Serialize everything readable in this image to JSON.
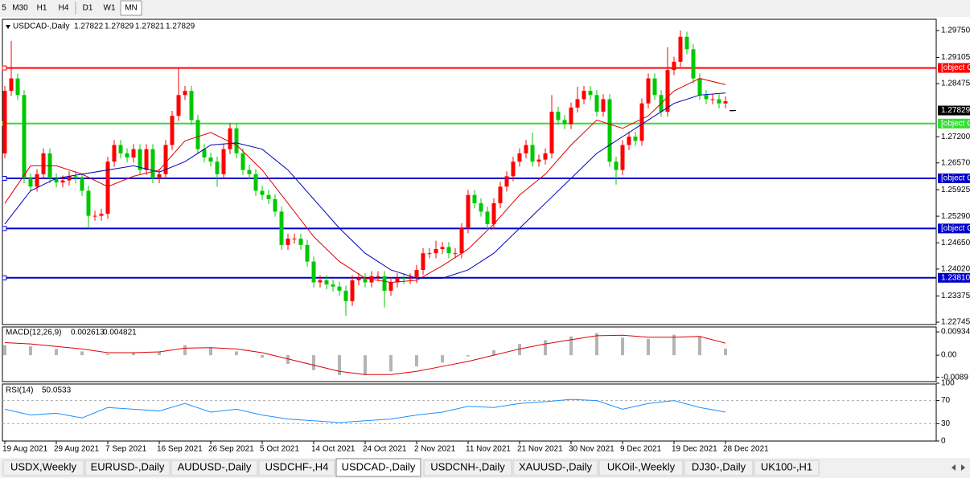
{
  "toolbar": {
    "timeframes": [
      "5",
      "M30",
      "H1",
      "H4",
      "D1",
      "W1",
      "MN"
    ],
    "active": 6
  },
  "chart_data": {
    "type": "candlestick",
    "title": "USDCAD-,Daily",
    "ylim": [
      1.22687,
      1.3002
    ],
    "yticks": [
      {
        "value": 1.2975,
        "label": "1.29750"
      },
      1.29105,
      1.28475,
      {
        "value": 1.272,
        "label": "1.27200"
      },
      {
        "value": 1.2657,
        "label": "1.26570"
      },
      1.25925,
      {
        "value": 1.2529,
        "label": "1.25290"
      },
      {
        "value": 1.2465,
        "label": "1.24650"
      },
      {
        "value": 1.2402,
        "label": "1.24020"
      },
      1.23375,
      1.22745
    ],
    "colors": {
      "up": "#ff0000",
      "down": "#00c800"
    },
    "open": [
      1.268,
      1.283,
      1.286,
      1.282,
      1.262,
      1.26,
      1.263,
      1.268,
      1.262,
      1.261,
      1.2615,
      1.2625,
      1.262,
      1.259,
      1.253,
      1.253,
      1.2535,
      1.266,
      1.27,
      1.268,
      1.267,
      1.269,
      1.264,
      1.269,
      1.262,
      1.263,
      1.27,
      1.277,
      1.282,
      1.283,
      1.276,
      1.269,
      1.267,
      1.266,
      1.263,
      1.269,
      1.274,
      1.268,
      1.264,
      1.263,
      1.259,
      1.258,
      1.257,
      1.254,
      1.246,
      1.2475,
      1.2475,
      1.246,
      1.242,
      1.237,
      1.2375,
      1.2365,
      1.236,
      1.235,
      1.2325,
      1.2375,
      1.238,
      1.237,
      1.2385,
      1.2385,
      1.235,
      1.237,
      1.238,
      1.2378,
      1.238,
      1.24,
      1.244,
      1.244,
      1.245,
      1.2455,
      1.244,
      1.244,
      1.25,
      1.258,
      1.256,
      1.254,
      1.251,
      1.256,
      1.26,
      1.2625,
      1.266,
      1.268,
      1.27,
      1.266,
      1.2665,
      1.268,
      1.278,
      1.276,
      1.275,
      1.279,
      1.281,
      1.283,
      1.282,
      1.278,
      1.281,
      1.266,
      1.264,
      1.27,
      1.272,
      1.271,
      1.28,
      1.286,
      1.282,
      1.278,
      1.288,
      1.29,
      1.296,
      1.293,
      1.286,
      1.282,
      1.281,
      1.281,
      1.28,
      1.27822
    ],
    "high": [
      1.2842,
      1.295,
      1.2872,
      1.2832,
      1.2632,
      1.2642,
      1.2692,
      1.2692,
      1.2632,
      1.2627,
      1.2637,
      1.2637,
      1.2632,
      1.2602,
      1.2542,
      1.2547,
      1.2672,
      1.2712,
      1.2712,
      1.2692,
      1.2702,
      1.2702,
      1.2702,
      1.2702,
      1.2642,
      1.2712,
      1.2782,
      1.2885,
      1.2842,
      1.2842,
      1.2772,
      1.2702,
      1.2682,
      1.2672,
      1.2702,
      1.2752,
      1.2752,
      1.2692,
      1.2652,
      1.2642,
      1.2602,
      1.2592,
      1.2582,
      1.2552,
      1.2487,
      1.2487,
      1.2487,
      1.2472,
      1.2432,
      1.2387,
      1.2387,
      1.2377,
      1.2372,
      1.2362,
      1.2387,
      1.2392,
      1.2392,
      1.2397,
      1.2397,
      1.2397,
      1.2382,
      1.2392,
      1.2392,
      1.2392,
      1.2412,
      1.2452,
      1.2452,
      1.247,
      1.2467,
      1.2467,
      1.2452,
      1.2512,
      1.2592,
      1.2592,
      1.2572,
      1.2552,
      1.2572,
      1.2612,
      1.2637,
      1.2672,
      1.2692,
      1.2712,
      1.273,
      1.2677,
      1.2692,
      1.282,
      1.2792,
      1.2772,
      1.2802,
      1.284,
      1.2842,
      1.2842,
      1.2832,
      1.2822,
      1.2822,
      1.2672,
      1.2712,
      1.2732,
      1.2732,
      1.2812,
      1.2872,
      1.2872,
      1.2832,
      1.2935,
      1.2912,
      1.2975,
      1.2972,
      1.2942,
      1.2872,
      1.2832,
      1.2822,
      1.2822,
      1.2817,
      1.27829
    ],
    "low": [
      1.2668,
      1.2818,
      1.2808,
      1.2608,
      1.2588,
      1.2588,
      1.2618,
      1.2608,
      1.2598,
      1.2598,
      1.2603,
      1.2608,
      1.2578,
      1.25,
      1.2518,
      1.2518,
      1.2523,
      1.2648,
      1.2668,
      1.2658,
      1.2658,
      1.2628,
      1.2628,
      1.2608,
      1.2608,
      1.2618,
      1.2688,
      1.2758,
      1.2808,
      1.2748,
      1.2678,
      1.2658,
      1.2648,
      1.26,
      1.2618,
      1.2678,
      1.2668,
      1.2628,
      1.2618,
      1.2578,
      1.2568,
      1.2558,
      1.2528,
      1.2448,
      1.2448,
      1.2463,
      1.2448,
      1.2408,
      1.2358,
      1.2358,
      1.2353,
      1.2348,
      1.2338,
      1.229,
      1.2313,
      1.2363,
      1.2358,
      1.2358,
      1.2373,
      1.231,
      1.2338,
      1.2358,
      1.2366,
      1.2366,
      1.2368,
      1.2388,
      1.2428,
      1.2428,
      1.2438,
      1.2428,
      1.2428,
      1.2428,
      1.2488,
      1.2548,
      1.2528,
      1.2498,
      1.2498,
      1.2548,
      1.2588,
      1.2613,
      1.2648,
      1.2668,
      1.2648,
      1.2648,
      1.2653,
      1.2668,
      1.2748,
      1.2738,
      1.2738,
      1.2778,
      1.2798,
      1.2808,
      1.2768,
      1.2768,
      1.2648,
      1.2605,
      1.2628,
      1.2688,
      1.2698,
      1.2698,
      1.2788,
      1.2808,
      1.2768,
      1.2768,
      1.2868,
      1.2888,
      1.2918,
      1.2848,
      1.2808,
      1.2798,
      1.2798,
      1.2788,
      1.2788,
      1.27821
    ],
    "close": [
      1.283,
      1.286,
      1.282,
      1.262,
      1.26,
      1.263,
      1.268,
      1.262,
      1.261,
      1.2615,
      1.2625,
      1.262,
      1.259,
      1.253,
      1.253,
      1.2535,
      1.266,
      1.27,
      1.268,
      1.267,
      1.269,
      1.264,
      1.269,
      1.262,
      1.263,
      1.27,
      1.277,
      1.282,
      1.283,
      1.276,
      1.269,
      1.267,
      1.266,
      1.263,
      1.269,
      1.274,
      1.268,
      1.264,
      1.263,
      1.259,
      1.258,
      1.257,
      1.254,
      1.246,
      1.2475,
      1.2475,
      1.246,
      1.242,
      1.237,
      1.2375,
      1.2365,
      1.236,
      1.235,
      1.2325,
      1.2375,
      1.238,
      1.237,
      1.2385,
      1.2385,
      1.235,
      1.237,
      1.238,
      1.2378,
      1.238,
      1.24,
      1.244,
      1.244,
      1.245,
      1.2455,
      1.244,
      1.244,
      1.25,
      1.258,
      1.256,
      1.254,
      1.251,
      1.256,
      1.26,
      1.2625,
      1.266,
      1.268,
      1.27,
      1.266,
      1.2665,
      1.268,
      1.278,
      1.276,
      1.275,
      1.279,
      1.281,
      1.283,
      1.282,
      1.278,
      1.281,
      1.266,
      1.264,
      1.27,
      1.272,
      1.271,
      1.28,
      1.286,
      1.282,
      1.278,
      1.288,
      1.29,
      1.296,
      1.293,
      1.286,
      1.282,
      1.281,
      1.281,
      1.28,
      1.2805,
      1.27829
    ],
    "x_labels": [
      "19 Aug 2021",
      "29 Aug 2021",
      "7 Sep 2021",
      "16 Sep 2021",
      "26 Sep 2021",
      "5 Oct 2021",
      "14 Oct 2021",
      "24 Oct 2021",
      "2 Nov 2021",
      "11 Nov 2021",
      "21 Nov 2021",
      "30 Nov 2021",
      "9 Dec 2021",
      "19 Dec 2021",
      "28 Dec 2021"
    ],
    "levels": [
      {
        "value": 1.28851,
        "color": "#ff0000"
      },
      {
        "value": 1.27515,
        "color": "#33dd33"
      },
      {
        "value": 1.26199,
        "color": "#0000cc"
      },
      {
        "value": 1.24995,
        "color": "#0000cc"
      },
      {
        "value": 1.2381,
        "label": "1.23810",
        "color": "#0000cc"
      }
    ],
    "indicator_x": [
      0,
      4,
      8,
      12,
      16,
      20,
      24,
      28,
      32,
      36,
      40,
      44,
      48,
      52,
      56,
      60,
      64,
      68,
      72,
      76,
      80,
      84,
      88,
      92,
      96,
      100,
      104,
      108,
      112
    ],
    "ma": [
      {
        "color": "#dd0000",
        "values": [
          1.256,
          1.265,
          1.265,
          1.263,
          1.26,
          1.2625,
          1.264,
          1.271,
          1.273,
          1.27,
          1.264,
          1.256,
          1.248,
          1.242,
          1.238,
          1.237,
          1.2375,
          1.241,
          1.245,
          1.251,
          1.258,
          1.263,
          1.27,
          1.276,
          1.274,
          1.277,
          1.283,
          1.286,
          1.2845
        ]
      },
      {
        "color": "#0000bb",
        "values": [
          1.251,
          1.259,
          1.262,
          1.263,
          1.264,
          1.265,
          1.2635,
          1.266,
          1.27,
          1.2705,
          1.269,
          1.264,
          1.257,
          1.25,
          1.244,
          1.24,
          1.238,
          1.238,
          1.24,
          1.244,
          1.25,
          1.256,
          1.262,
          1.268,
          1.272,
          1.276,
          1.28,
          1.282,
          1.2825
        ]
      }
    ]
  },
  "macd": {
    "title": "MACD(12,26,9)",
    "ylim": [
      -0.0106,
      0.0113
    ],
    "yticks": [
      0.009345,
      {
        "value": 0,
        "label": "0.00"
      },
      -0.0089
    ],
    "histogram_color": "#b4b4b4",
    "signal_color": "#dd0000",
    "histogram": [
      0.004,
      0.0035,
      0.0025,
      0.0015,
      0.0005,
      0.0008,
      0.0015,
      0.004,
      0.003,
      0.0015,
      -0.001,
      -0.0035,
      -0.006,
      -0.008,
      -0.008,
      -0.0065,
      -0.0045,
      -0.003,
      -0.0005,
      0.002,
      0.0045,
      0.006,
      0.0075,
      0.0088,
      0.007,
      0.0065,
      0.0082,
      0.0075,
      0.002613
    ],
    "signal": [
      0.005,
      0.0045,
      0.0035,
      0.0025,
      0.001,
      0.001,
      0.0013,
      0.0028,
      0.003,
      0.0025,
      0.001,
      -0.0015,
      -0.004,
      -0.0065,
      -0.0078,
      -0.0078,
      -0.0065,
      -0.0045,
      -0.0025,
      0.0,
      0.0025,
      0.0045,
      0.0062,
      0.0078,
      0.008,
      0.0072,
      0.0072,
      0.0075,
      0.004821
    ]
  },
  "rsi": {
    "title": "RSI(14)",
    "ylim": [
      0,
      100
    ],
    "yticks": [
      100,
      70,
      30,
      0
    ],
    "levels": [
      70,
      30
    ],
    "color": "#1e90ff",
    "values": [
      55,
      45,
      48,
      40,
      58,
      55,
      52,
      65,
      50,
      55,
      45,
      38,
      35,
      32,
      35,
      38,
      45,
      50,
      60,
      58,
      65,
      68,
      72,
      70,
      55,
      65,
      70,
      58,
      50.0533
    ]
  },
  "tabs": [
    "USDX,Weekly",
    "EURUSD-,Daily",
    "AUDUSD-,Daily",
    "USDCHF-,H4",
    "USDCAD-,Daily",
    "USDCNH-,Daily",
    "XAUUSD-,Daily",
    "UKOil-,Weekly",
    "DJ30-,Daily",
    "UK100-,H1"
  ],
  "active_tab": 4
}
